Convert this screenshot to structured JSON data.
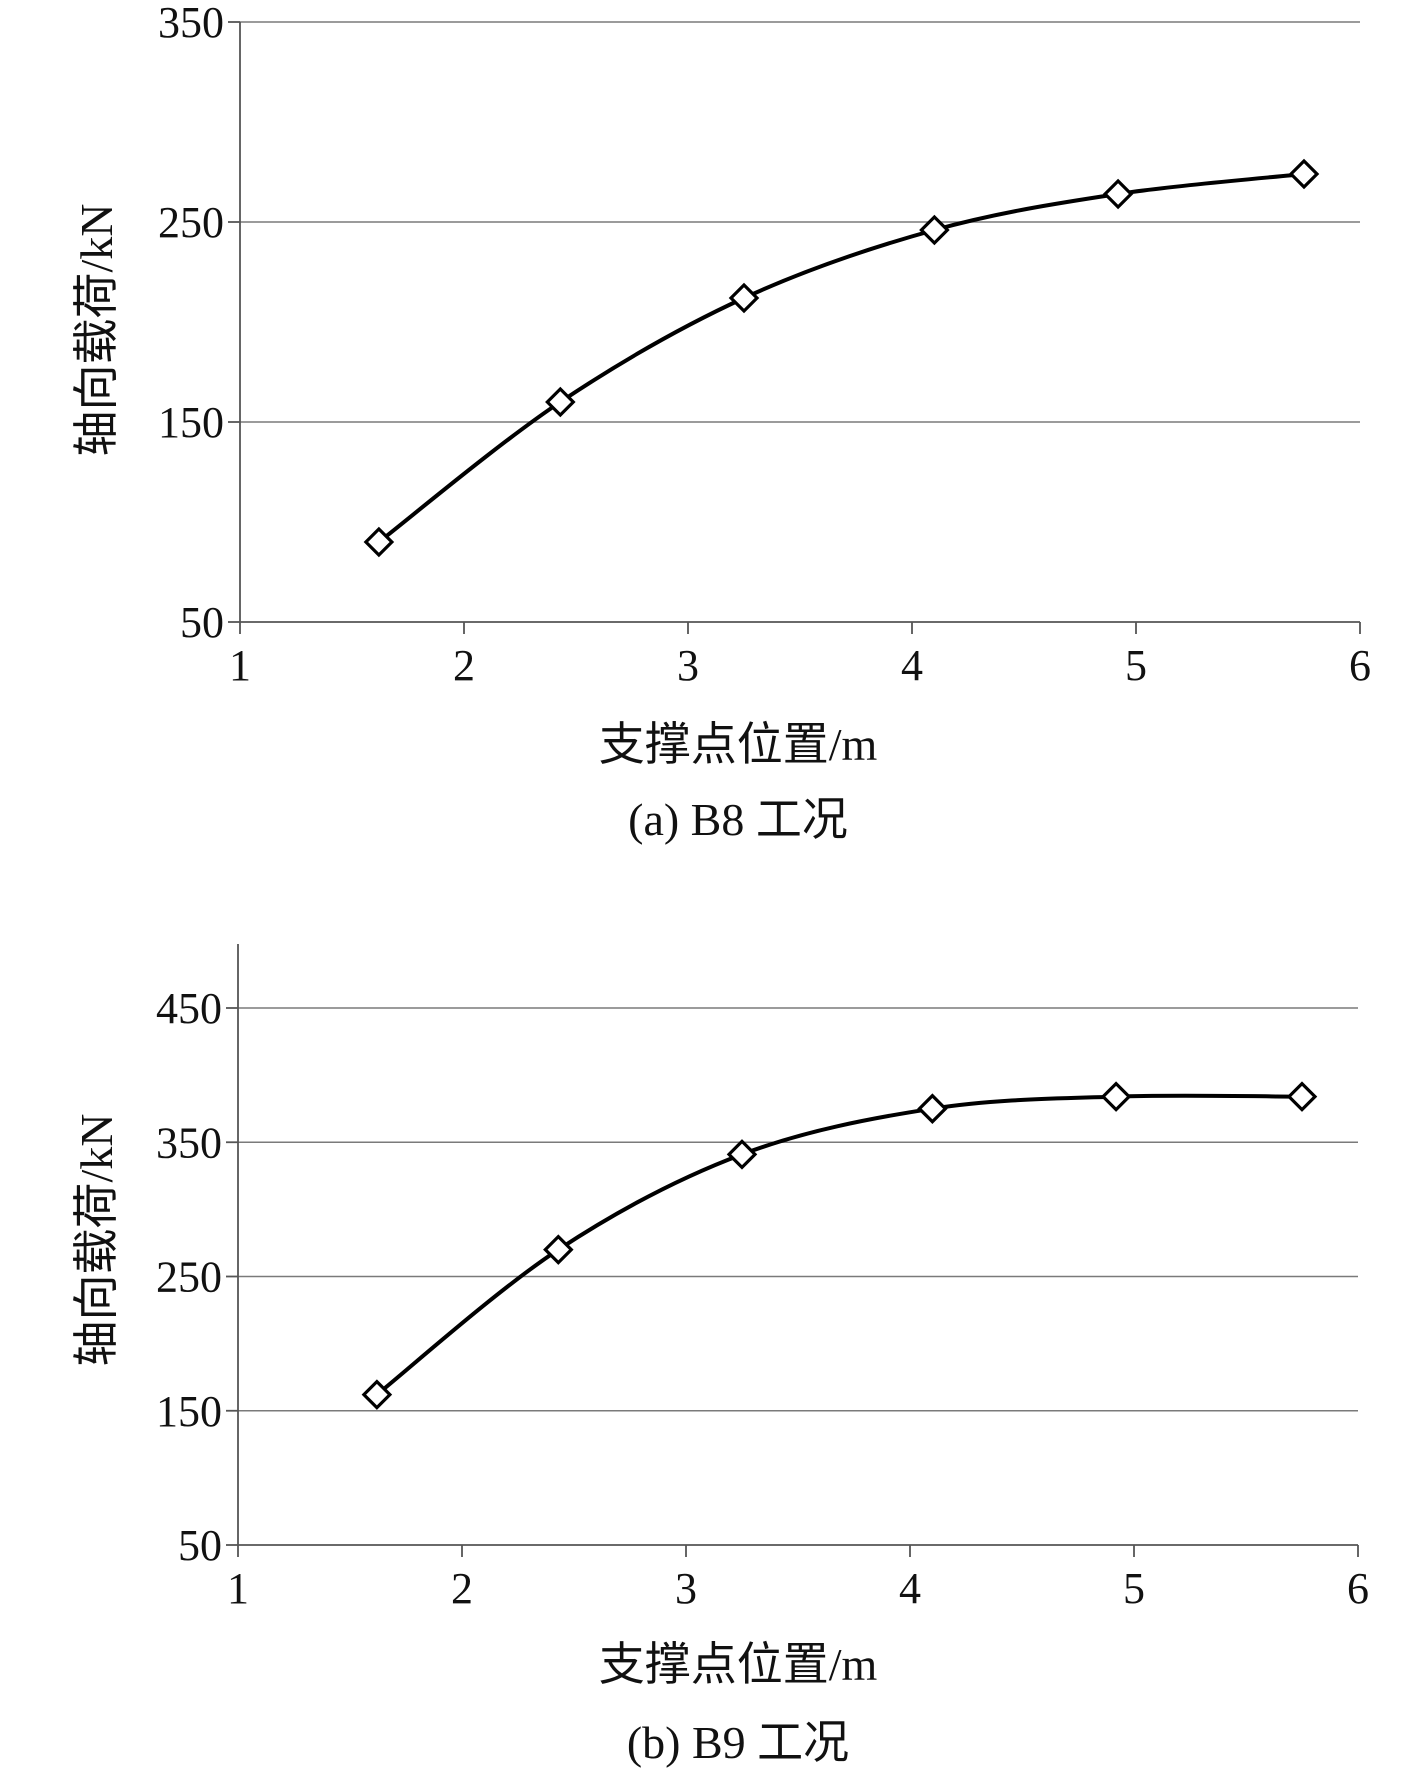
{
  "chart_data": [
    {
      "type": "line",
      "caption": "(a) B8 工况",
      "xlabel": "支撑点位置/m",
      "ylabel": "轴向载荷/kN",
      "xlim": [
        1,
        6
      ],
      "ylim": [
        50,
        350
      ],
      "xticks": [
        1,
        2,
        3,
        4,
        5,
        6
      ],
      "yticks": [
        50,
        150,
        250,
        350
      ],
      "grid": true,
      "marker": "diamond",
      "smooth": true,
      "x": [
        1.62,
        2.43,
        3.25,
        4.1,
        4.92,
        5.75
      ],
      "y": [
        90,
        160,
        212,
        246,
        264,
        274
      ]
    },
    {
      "type": "line",
      "caption": "(b) B9 工况",
      "xlabel": "支撑点位置/m",
      "ylabel": "轴向载荷/kN",
      "xlim": [
        1,
        6
      ],
      "ylim": [
        50,
        450
      ],
      "xticks": [
        1,
        2,
        3,
        4,
        5,
        6
      ],
      "yticks": [
        50,
        150,
        250,
        350,
        450
      ],
      "grid": true,
      "marker": "diamond",
      "smooth": true,
      "x": [
        1.62,
        2.43,
        3.25,
        4.1,
        4.92,
        5.75
      ],
      "y": [
        162,
        270,
        341,
        375,
        384,
        384
      ]
    }
  ]
}
